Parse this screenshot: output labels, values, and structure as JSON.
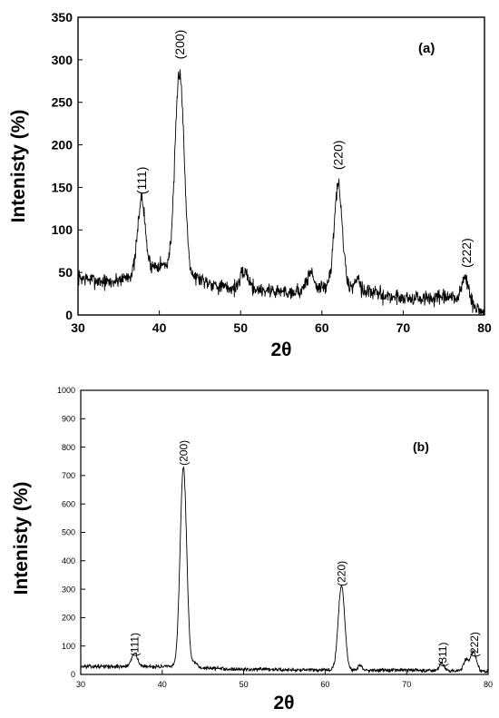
{
  "chart_data": [
    {
      "type": "line",
      "panel_label": "(a)",
      "xlabel": "2θ",
      "ylabel": "Intenisty (%)",
      "xlim": [
        30,
        80
      ],
      "ylim": [
        0,
        350
      ],
      "xticks": [
        30,
        40,
        50,
        60,
        70,
        80
      ],
      "yticks": [
        0,
        50,
        100,
        150,
        200,
        250,
        300,
        350
      ],
      "grid": false,
      "line_color": "#000000",
      "noise": 7,
      "background": [
        [
          30,
          44
        ],
        [
          34,
          38
        ],
        [
          36,
          45
        ],
        [
          40,
          60
        ],
        [
          44,
          46
        ],
        [
          48,
          32
        ],
        [
          52,
          30
        ],
        [
          56,
          27
        ],
        [
          60,
          32
        ],
        [
          64,
          32
        ],
        [
          68,
          22
        ],
        [
          72,
          19
        ],
        [
          76,
          20
        ],
        [
          80,
          3
        ]
      ],
      "peaks": [
        {
          "x": 37.8,
          "height": 85,
          "width": 0.45
        },
        {
          "x": 42.5,
          "height": 235,
          "width": 0.55
        },
        {
          "x": 50.5,
          "height": 20,
          "width": 0.5
        },
        {
          "x": 58.6,
          "height": 20,
          "width": 0.4
        },
        {
          "x": 62.0,
          "height": 120,
          "width": 0.5
        },
        {
          "x": 64.4,
          "height": 15,
          "width": 0.25
        },
        {
          "x": 77.6,
          "height": 30,
          "width": 0.45
        }
      ],
      "annotations": [
        {
          "text": "(111)",
          "x": 37.8,
          "y": 158
        },
        {
          "text": "(200)",
          "x": 42.5,
          "y": 318
        },
        {
          "text": "(220)",
          "x": 62.0,
          "y": 188
        },
        {
          "text": "(222)",
          "x": 77.8,
          "y": 73
        }
      ]
    },
    {
      "type": "line",
      "panel_label": "(b)",
      "xlabel": "2θ",
      "ylabel": "Intenisty (%)",
      "xlim": [
        30,
        80
      ],
      "ylim": [
        0,
        1000
      ],
      "xticks": [
        30,
        40,
        50,
        60,
        70,
        80
      ],
      "yticks": [
        0,
        100,
        200,
        300,
        400,
        500,
        600,
        700,
        800,
        900,
        1000
      ],
      "grid": false,
      "line_color": "#000000",
      "noise": 5,
      "background": [
        [
          30,
          28
        ],
        [
          40,
          28
        ],
        [
          50,
          18
        ],
        [
          60,
          15
        ],
        [
          70,
          15
        ],
        [
          80,
          12
        ]
      ],
      "peaks": [
        {
          "x": 36.6,
          "height": 50,
          "width": 0.35
        },
        {
          "x": 42.6,
          "height": 705,
          "width": 0.4
        },
        {
          "x": 44.0,
          "height": 15,
          "width": 0.3
        },
        {
          "x": 62.0,
          "height": 298,
          "width": 0.4
        },
        {
          "x": 64.3,
          "height": 18,
          "width": 0.25
        },
        {
          "x": 74.3,
          "height": 28,
          "width": 0.3
        },
        {
          "x": 77.3,
          "height": 38,
          "width": 0.3
        },
        {
          "x": 78.2,
          "height": 68,
          "width": 0.35
        }
      ],
      "annotations": [
        {
          "text": "(111)",
          "x": 36.6,
          "y": 105
        },
        {
          "text": "(200)",
          "x": 42.6,
          "y": 780
        },
        {
          "text": "(220)",
          "x": 62.0,
          "y": 355
        },
        {
          "text": "(311)",
          "x": 74.4,
          "y": 70
        },
        {
          "text": "(222)",
          "x": 78.3,
          "y": 105
        }
      ]
    }
  ]
}
